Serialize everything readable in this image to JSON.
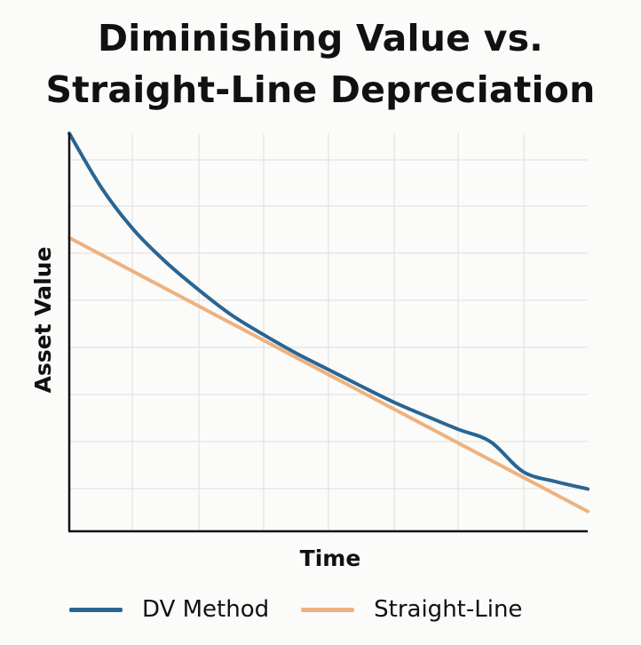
{
  "chart_data": {
    "type": "line",
    "title_lines": [
      "Diminishing Value vs.",
      "Straight-Line Depreciation"
    ],
    "xlabel": "Time",
    "ylabel": "Asset Value",
    "xlim": [
      0,
      8
    ],
    "ylim": [
      0,
      8
    ],
    "grid": true,
    "legend": "bottom",
    "series": [
      {
        "name": "DV Method",
        "color": "#2a6592",
        "x": [
          0,
          0.5,
          1,
          1.5,
          2,
          2.5,
          3,
          3.5,
          4,
          4.5,
          5,
          5.5,
          6,
          6.5,
          7,
          7.5,
          8
        ],
        "y": [
          8.0,
          6.9,
          6.05,
          5.4,
          4.85,
          4.35,
          3.95,
          3.58,
          3.25,
          2.92,
          2.6,
          2.32,
          2.05,
          1.8,
          1.2,
          1.0,
          0.85
        ]
      },
      {
        "name": "Straight-Line",
        "color": "#edb27f",
        "x": [
          0,
          8
        ],
        "y": [
          5.9,
          0.4
        ]
      }
    ]
  }
}
